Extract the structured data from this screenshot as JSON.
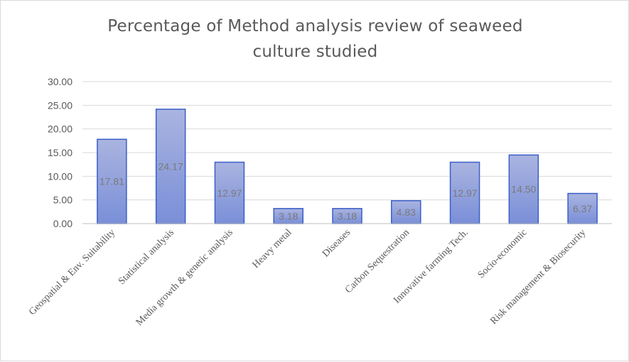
{
  "chart_data": {
    "type": "bar",
    "title": "Percentage of Method analysis review of seaweed culture studied",
    "title_lines": [
      "Percentage of Method analysis review of seaweed",
      "culture studied"
    ],
    "xlabel": "",
    "ylabel": "",
    "categories": [
      "Geospatial & Env. Suitability",
      "Statistical analysis",
      "Media growth & genetic analysis",
      "Heavy metal",
      "Diseases",
      "Carbon Sequestration",
      "Innovative farming Tech.",
      "Socio-economic",
      "Risk management & Biosecurity"
    ],
    "values": [
      17.81,
      24.17,
      12.97,
      3.18,
      3.18,
      4.83,
      12.97,
      14.5,
      6.37
    ],
    "data_labels": [
      "17.81",
      "24.17",
      "12.97",
      "3.18",
      "3.18",
      "4.83",
      "12.97",
      "14.50",
      "6.37"
    ],
    "ylim": [
      0,
      30
    ],
    "yticks": [
      "0.00",
      "5.00",
      "10.00",
      "15.00",
      "20.00",
      "25.00",
      "30.00"
    ],
    "grid": true,
    "legend": "none",
    "colors": {
      "bar_top": "#aab4e0",
      "bar_bottom": "#7a8fd8",
      "bar_border": "#3a5fc8",
      "grid": "#d9d9d9",
      "text": "#595959"
    }
  }
}
